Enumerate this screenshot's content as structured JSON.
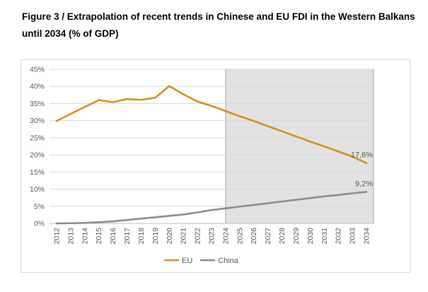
{
  "figure": {
    "title": "Figure 3 / Extrapolation of recent trends in Chinese and EU FDI in the Western Balkans until 2034 (% of GDP)"
  },
  "colors": {
    "eu": "#D4901C",
    "china": "#8C8C8C",
    "projection_shade": "#E2E2E2",
    "projection_border": "#A6A6A6",
    "gridline": "#D9D9D9",
    "axis_text": "#595959"
  },
  "chart_data": {
    "type": "line",
    "title": "",
    "xlabel": "",
    "ylabel": "",
    "x": [
      "2012",
      "2013",
      "2014",
      "2015",
      "2016",
      "2017",
      "2018",
      "2019",
      "2020",
      "2021",
      "2022",
      "2023",
      "2024",
      "2025",
      "2026",
      "2027",
      "2028",
      "2029",
      "2030",
      "2031",
      "2032",
      "2033",
      "2034"
    ],
    "ylim": [
      0,
      45
    ],
    "yticks": [
      0,
      5,
      10,
      15,
      20,
      25,
      30,
      35,
      40,
      45
    ],
    "ytick_labels": [
      "0%",
      "5%",
      "10%",
      "15%",
      "20%",
      "25%",
      "30%",
      "35%",
      "40%",
      "45%"
    ],
    "grid": true,
    "legend_position": "bottom",
    "projection_shaded_from": "2024",
    "series": [
      {
        "name": "EU",
        "color": "#D4901C",
        "values": [
          29.9,
          32.0,
          34.0,
          36.0,
          35.4,
          36.3,
          36.1,
          36.7,
          40.1,
          37.7,
          35.6,
          34.3,
          32.8,
          31.3,
          29.9,
          28.4,
          26.9,
          25.4,
          23.9,
          22.5,
          21.0,
          19.5,
          17.6
        ]
      },
      {
        "name": "China",
        "color": "#8C8C8C",
        "values": [
          0.0,
          0.05,
          0.15,
          0.35,
          0.6,
          1.0,
          1.4,
          1.8,
          2.2,
          2.6,
          3.2,
          3.9,
          4.4,
          4.9,
          5.4,
          5.9,
          6.4,
          6.9,
          7.4,
          7.9,
          8.3,
          8.8,
          9.2
        ]
      }
    ],
    "annotations": [
      {
        "series": "EU",
        "x": "2034",
        "text": "17,6%"
      },
      {
        "series": "China",
        "x": "2034",
        "text": "9,2%"
      }
    ]
  }
}
